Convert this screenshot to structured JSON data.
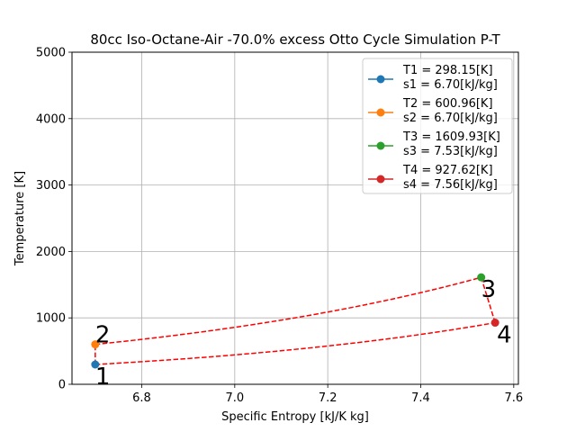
{
  "chart_data": {
    "type": "line",
    "title": "80cc Iso-Octane-Air -70.0% excess Otto Cycle Simulation P-T",
    "xlabel": "Specific Entropy [kJ/K kg]",
    "ylabel": "Temperature [K]",
    "xlim": [
      6.65,
      7.61
    ],
    "ylim": [
      0,
      5000
    ],
    "xticks": [
      "6.8",
      "7.0",
      "7.2",
      "7.4",
      "7.6"
    ],
    "yticks": [
      "0",
      "1000",
      "2000",
      "3000",
      "4000",
      "5000"
    ],
    "grid": true,
    "legend_position": "top-right",
    "points": [
      {
        "label": "1",
        "s": 6.7,
        "T": 298.15,
        "color": "#1f77b4",
        "legend": [
          "T1 = 298.15[K]",
          "s1 = 6.70[kJ/kg]"
        ]
      },
      {
        "label": "2",
        "s": 6.7,
        "T": 600.96,
        "color": "#ff7f0e",
        "legend": [
          "T2 = 600.96[K]",
          "s2 = 6.70[kJ/kg]"
        ]
      },
      {
        "label": "3",
        "s": 7.53,
        "T": 1609.93,
        "color": "#2ca02c",
        "legend": [
          "T3 = 1609.93[K]",
          "s3 = 7.53[kJ/kg]"
        ]
      },
      {
        "label": "4",
        "s": 7.56,
        "T": 927.62,
        "color": "#d62728",
        "legend": [
          "T4 = 927.62[K]",
          "s4 = 7.56[kJ/kg]"
        ]
      }
    ],
    "process_color": "#ff0000"
  }
}
